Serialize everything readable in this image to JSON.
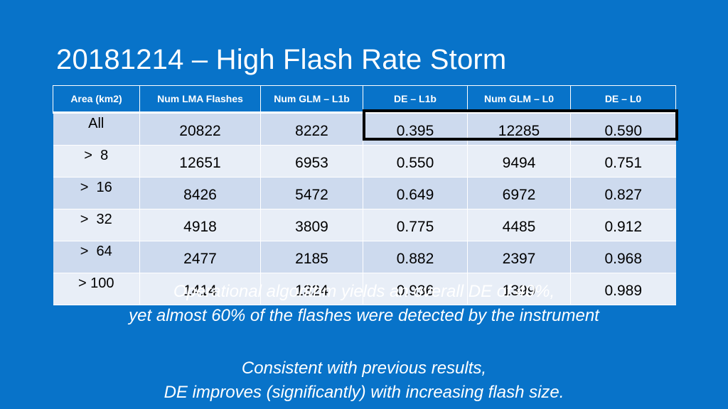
{
  "slide": {
    "title": "20181214 – High Flash Rate Storm"
  },
  "table": {
    "headers": [
      "Area (km2)",
      "Num LMA Flashes",
      "Num GLM – L1b",
      "DE – L1b",
      "Num GLM – L0",
      "DE – L0"
    ],
    "rows": [
      [
        "All",
        "20822",
        "8222",
        "0.395",
        "12285",
        "0.590"
      ],
      [
        ">  8",
        "12651",
        "6953",
        "0.550",
        "9494",
        "0.751"
      ],
      [
        ">  16",
        "8426",
        "5472",
        "0.649",
        "6972",
        "0.827"
      ],
      [
        ">  32",
        "4918",
        "3809",
        "0.775",
        "4485",
        "0.912"
      ],
      [
        ">  64",
        "2477",
        "2185",
        "0.882",
        "2397",
        "0.968"
      ],
      [
        "> 100",
        "1414",
        "1324",
        "0.936",
        "1399",
        "0.989"
      ]
    ],
    "highlight_color": "#000000",
    "row_colors": [
      "#cddaee",
      "#e8eef7"
    ],
    "header_color": "#0873c9"
  },
  "captions": {
    "first": [
      "Operational algorithm yields an overall DE of 40%,",
      "yet almost 60% of the flashes were detected by the instrument"
    ],
    "second": [
      "Consistent with previous results,",
      "DE improves (significantly) with increasing flash size."
    ]
  },
  "colors": {
    "background": "#0873c9",
    "text": "#ffffff"
  }
}
